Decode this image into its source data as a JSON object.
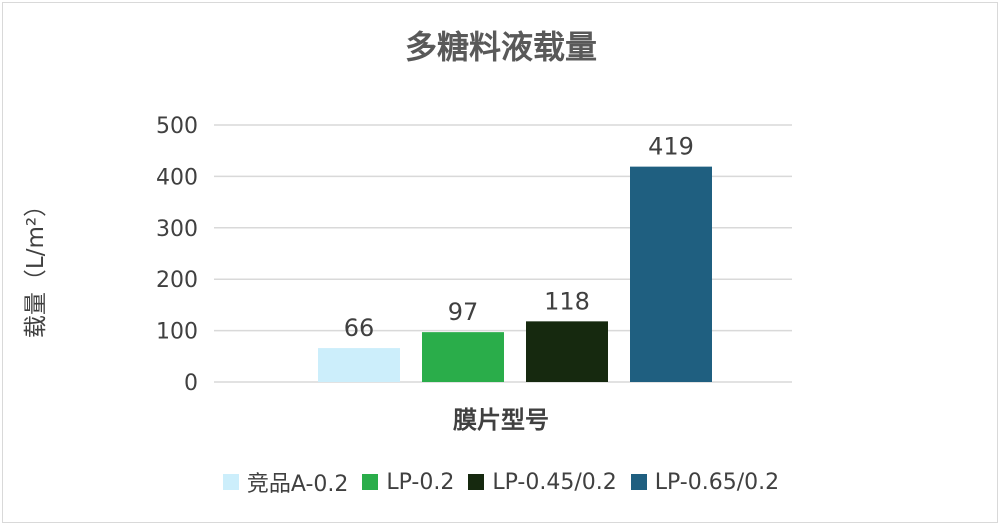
{
  "chart_data": {
    "type": "bar",
    "title": "多糖料液载量",
    "xlabel": "膜片型号",
    "ylabel": "载量（L/m²）",
    "ylim": [
      0,
      500
    ],
    "yticks": [
      0,
      100,
      200,
      300,
      400,
      500
    ],
    "grid": true,
    "legend_position": "bottom",
    "categories": [
      "竞品A-0.2",
      "LP-0.2",
      "LP-0.45/0.2",
      "LP-0.65/0.2"
    ],
    "values": [
      66,
      97,
      118,
      419
    ],
    "colors": [
      "#cceefb",
      "#2aad4a",
      "#16290f",
      "#1f5f80"
    ]
  }
}
